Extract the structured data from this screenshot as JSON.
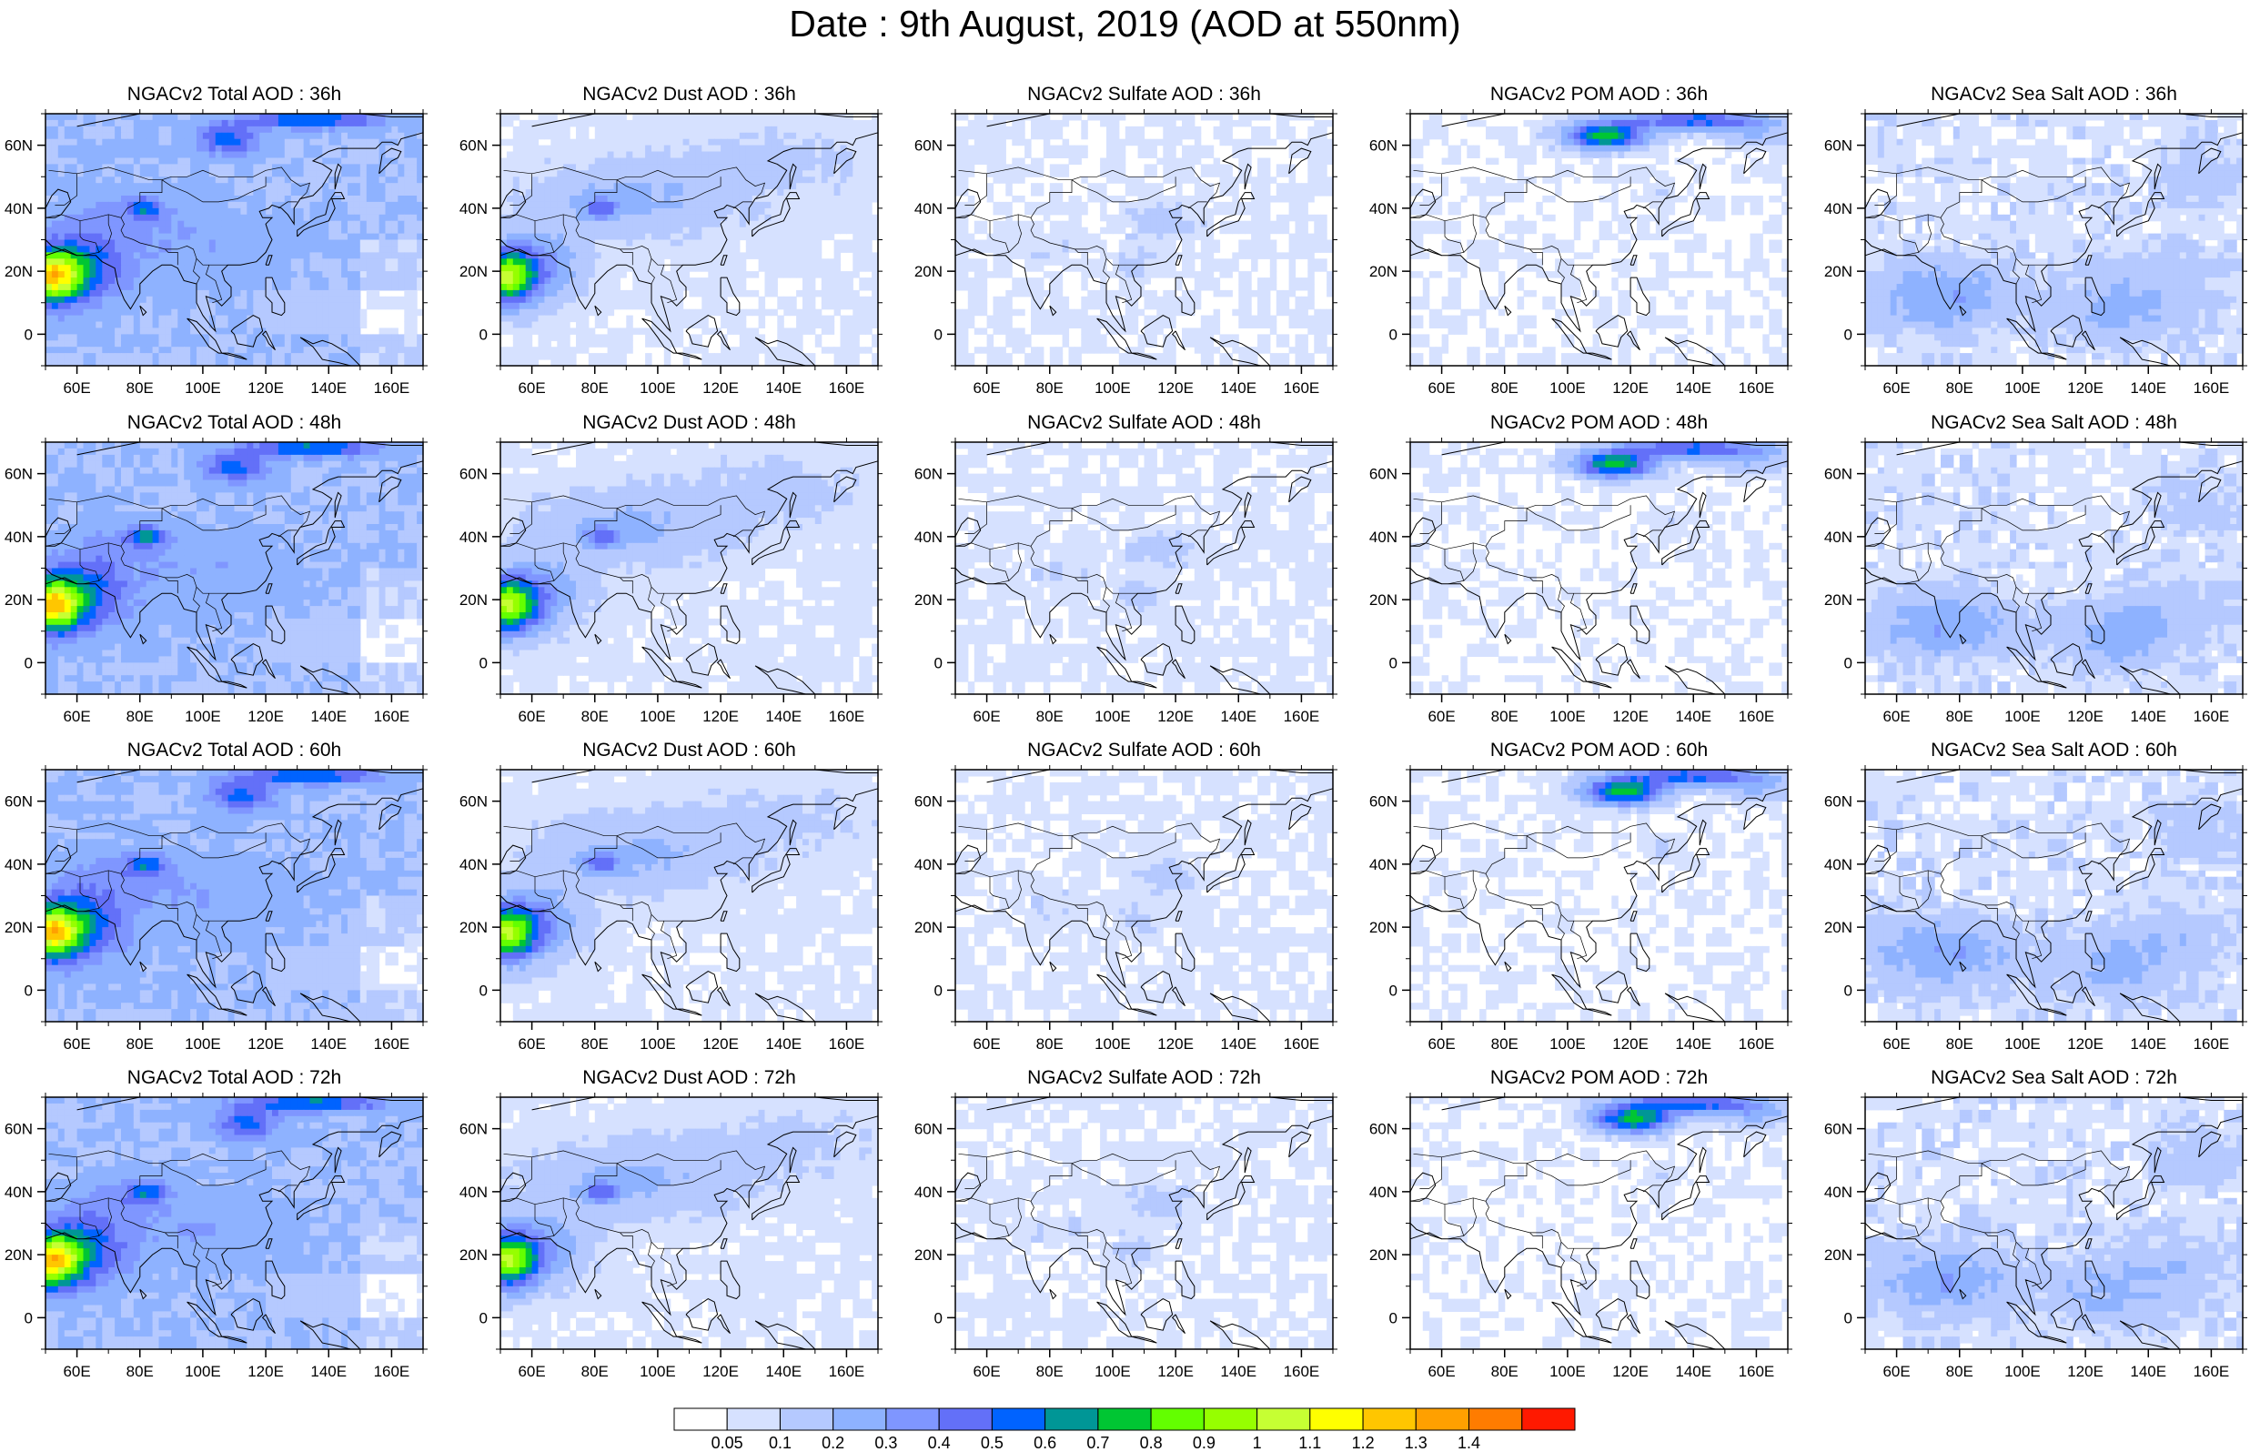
{
  "title": "Date : 9th August, 2019 (AOD at 550nm)",
  "chart_data": {
    "type": "heatmap",
    "title": "Date : 9th August, 2019 (AOD at 550nm)",
    "grid_rows": [
      "36h",
      "48h",
      "60h",
      "72h"
    ],
    "grid_cols": [
      "Total",
      "Dust",
      "Sulfate",
      "POM",
      "Sea Salt"
    ],
    "panels": [
      {
        "title": "NGACv2 Total AOD : 36h"
      },
      {
        "title": "NGACv2 Dust AOD : 36h"
      },
      {
        "title": "NGACv2 Sulfate AOD : 36h"
      },
      {
        "title": "NGACv2 POM AOD : 36h"
      },
      {
        "title": "NGACv2 Sea Salt AOD : 36h"
      },
      {
        "title": "NGACv2 Total AOD : 48h"
      },
      {
        "title": "NGACv2 Dust AOD : 48h"
      },
      {
        "title": "NGACv2 Sulfate AOD : 48h"
      },
      {
        "title": "NGACv2 POM AOD : 48h"
      },
      {
        "title": "NGACv2 Sea Salt AOD : 48h"
      },
      {
        "title": "NGACv2 Total AOD : 60h"
      },
      {
        "title": "NGACv2 Dust AOD : 60h"
      },
      {
        "title": "NGACv2 Sulfate AOD : 60h"
      },
      {
        "title": "NGACv2 POM AOD : 60h"
      },
      {
        "title": "NGACv2 Sea Salt AOD : 60h"
      },
      {
        "title": "NGACv2 Total AOD : 72h"
      },
      {
        "title": "NGACv2 Dust AOD : 72h"
      },
      {
        "title": "NGACv2 Sulfate AOD : 72h"
      },
      {
        "title": "NGACv2 POM AOD : 72h"
      },
      {
        "title": "NGACv2 Sea Salt  AOD : 72h"
      }
    ],
    "x_ticks": [
      "60E",
      "80E",
      "100E",
      "120E",
      "140E",
      "160E"
    ],
    "y_ticks": [
      "0",
      "20N",
      "40N",
      "60N"
    ],
    "xlim": [
      50,
      170
    ],
    "ylim": [
      -10,
      70
    ],
    "x_tick_values": [
      60,
      80,
      100,
      120,
      140,
      160
    ],
    "y_tick_values": [
      0,
      20,
      40,
      60
    ],
    "colorbar": {
      "labels": [
        "0.05",
        "0.1",
        "0.2",
        "0.3",
        "0.4",
        "0.5",
        "0.6",
        "0.7",
        "0.8",
        "0.9",
        "1",
        "1.1",
        "1.2",
        "1.3",
        "1.4"
      ],
      "colors": [
        "#ffffff",
        "#d6e1ff",
        "#b5c9ff",
        "#8eb2ff",
        "#7f96ff",
        "#6370f8",
        "#0063ff",
        "#009696",
        "#00c633",
        "#63ff00",
        "#96ff00",
        "#c6ff33",
        "#ffff00",
        "#ffc600",
        "#ffa000",
        "#ff7c00",
        "#ff1900"
      ]
    }
  }
}
